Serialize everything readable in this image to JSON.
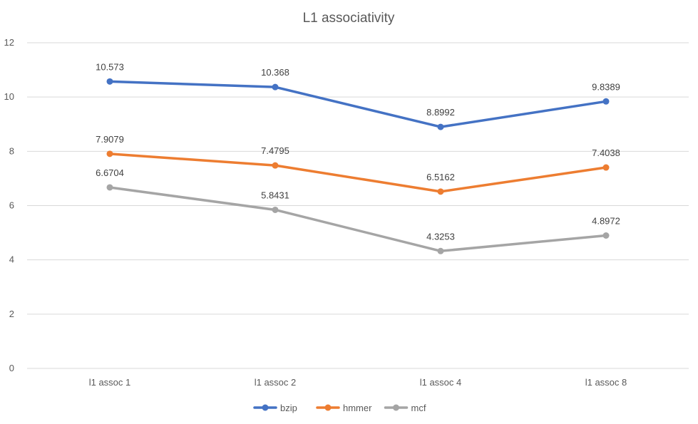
{
  "chart_data": {
    "type": "line",
    "title": "L1 associativity",
    "xlabel": "",
    "ylabel": "",
    "categories": [
      "l1 assoc 1",
      "l1 assoc 2",
      "l1 assoc 4",
      "l1 assoc 8"
    ],
    "ylim": [
      0,
      12
    ],
    "yticks": [
      0,
      2,
      4,
      6,
      8,
      10,
      12
    ],
    "grid": true,
    "legend": "bottom",
    "series": [
      {
        "name": "bzip",
        "color": "#4472C4",
        "values": [
          10.573,
          10.368,
          8.8992,
          9.8389
        ],
        "labels": [
          "10.573",
          "10.368",
          "8.8992",
          "9.8389"
        ]
      },
      {
        "name": "hmmer",
        "color": "#ED7D31",
        "values": [
          7.9079,
          7.4795,
          6.5162,
          7.4038
        ],
        "labels": [
          "7.9079",
          "7.4795",
          "6.5162",
          "7.4038"
        ]
      },
      {
        "name": "mcf",
        "color": "#A5A5A5",
        "values": [
          6.6704,
          5.8431,
          4.3253,
          4.8972
        ],
        "labels": [
          "6.6704",
          "5.8431",
          "4.3253",
          "4.8972"
        ]
      }
    ]
  }
}
